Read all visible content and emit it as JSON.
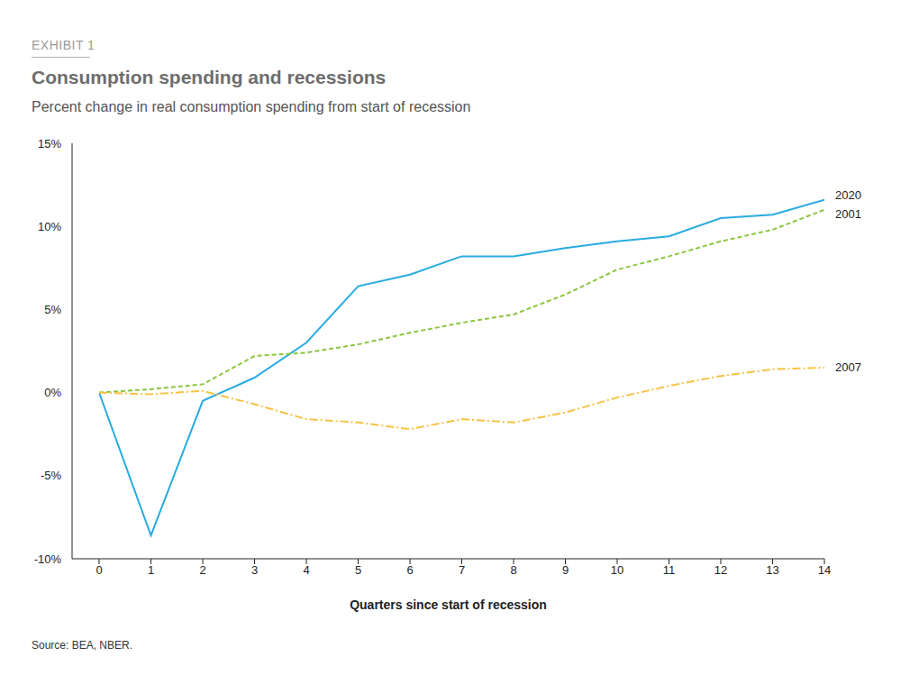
{
  "chart_data": {
    "type": "line",
    "kicker": "EXHIBIT 1",
    "title": "Consumption spending and recessions",
    "subtitle": "Percent change in real consumption spending from start of recession",
    "x_label": "Quarters since start of recession",
    "source": "Source: BEA, NBER.",
    "x": [
      0,
      1,
      2,
      3,
      4,
      5,
      6,
      7,
      8,
      9,
      10,
      11,
      12,
      13,
      14
    ],
    "xlim": [
      0,
      14
    ],
    "xticks": [
      0,
      1,
      2,
      3,
      4,
      5,
      6,
      7,
      8,
      9,
      10,
      11,
      12,
      13,
      14
    ],
    "ylim": [
      -10,
      15
    ],
    "yticks": [
      {
        "value": -10,
        "label": "-10%"
      },
      {
        "value": -5,
        "label": "-5%"
      },
      {
        "value": 0,
        "label": "0%"
      },
      {
        "value": 5,
        "label": "5%"
      },
      {
        "value": 10,
        "label": "10%"
      },
      {
        "value": 15,
        "label": "15%"
      }
    ],
    "grid": false,
    "series": [
      {
        "name": "2020",
        "color": "#29abe2",
        "line_style": "solid",
        "marker": "none",
        "values": [
          0,
          -8.6,
          -0.5,
          0.9,
          3.0,
          6.4,
          7.1,
          8.2,
          8.2,
          8.7,
          9.1,
          9.4,
          10.5,
          10.7,
          11.6
        ]
      },
      {
        "name": "2001",
        "color": "#8cc63f",
        "line_style": "dashed",
        "marker": "none",
        "values": [
          0,
          0.2,
          0.5,
          2.2,
          2.4,
          2.9,
          3.6,
          4.2,
          4.7,
          5.9,
          7.4,
          8.2,
          9.1,
          9.8,
          11.0
        ]
      },
      {
        "name": "2007",
        "color": "#f7c244",
        "line_style": "dashdot",
        "marker": "none",
        "values": [
          0,
          -0.1,
          0.1,
          -0.7,
          -1.6,
          -1.8,
          -2.2,
          -1.6,
          -1.8,
          -1.2,
          -0.3,
          0.4,
          1.0,
          1.4,
          1.5
        ]
      }
    ]
  }
}
